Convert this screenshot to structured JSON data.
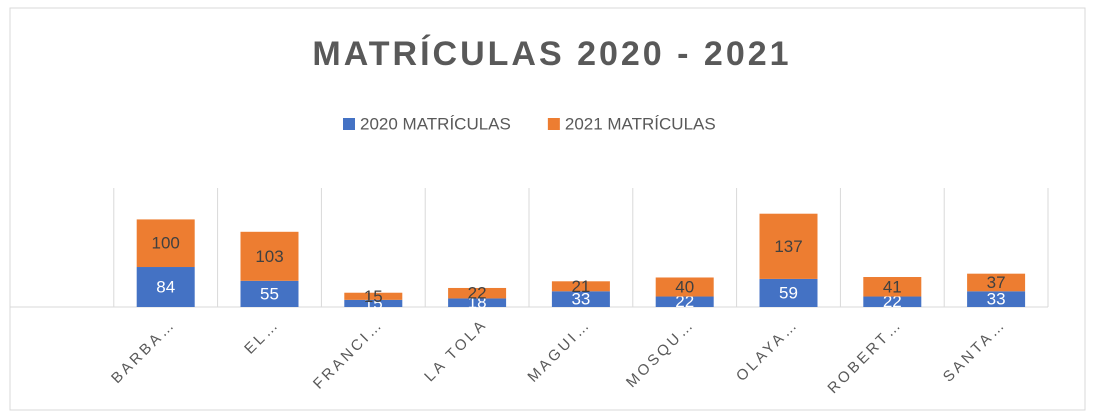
{
  "chart_data": {
    "type": "stacked_bar",
    "title": "MATRÍCULAS 2020 - 2021",
    "categories": [
      null,
      "BARBA…",
      "EL…",
      "FRANCI…",
      "LA TOLA",
      "MAGUI…",
      "MOSQU…",
      "OLAYA…",
      "ROBERT…",
      "SANTA…"
    ],
    "series": [
      {
        "name": "2020 MATRÍCULAS",
        "color": "#4472c4",
        "values": [
          null,
          84,
          55,
          15,
          18,
          33,
          22,
          59,
          22,
          33
        ]
      },
      {
        "name": "2021 MATRÍCULAS",
        "color": "#ed7d31",
        "values": [
          null,
          100,
          103,
          15,
          22,
          21,
          40,
          137,
          41,
          37
        ]
      }
    ],
    "ylim": [
      0,
      250
    ],
    "grid": true,
    "legend": "top"
  }
}
